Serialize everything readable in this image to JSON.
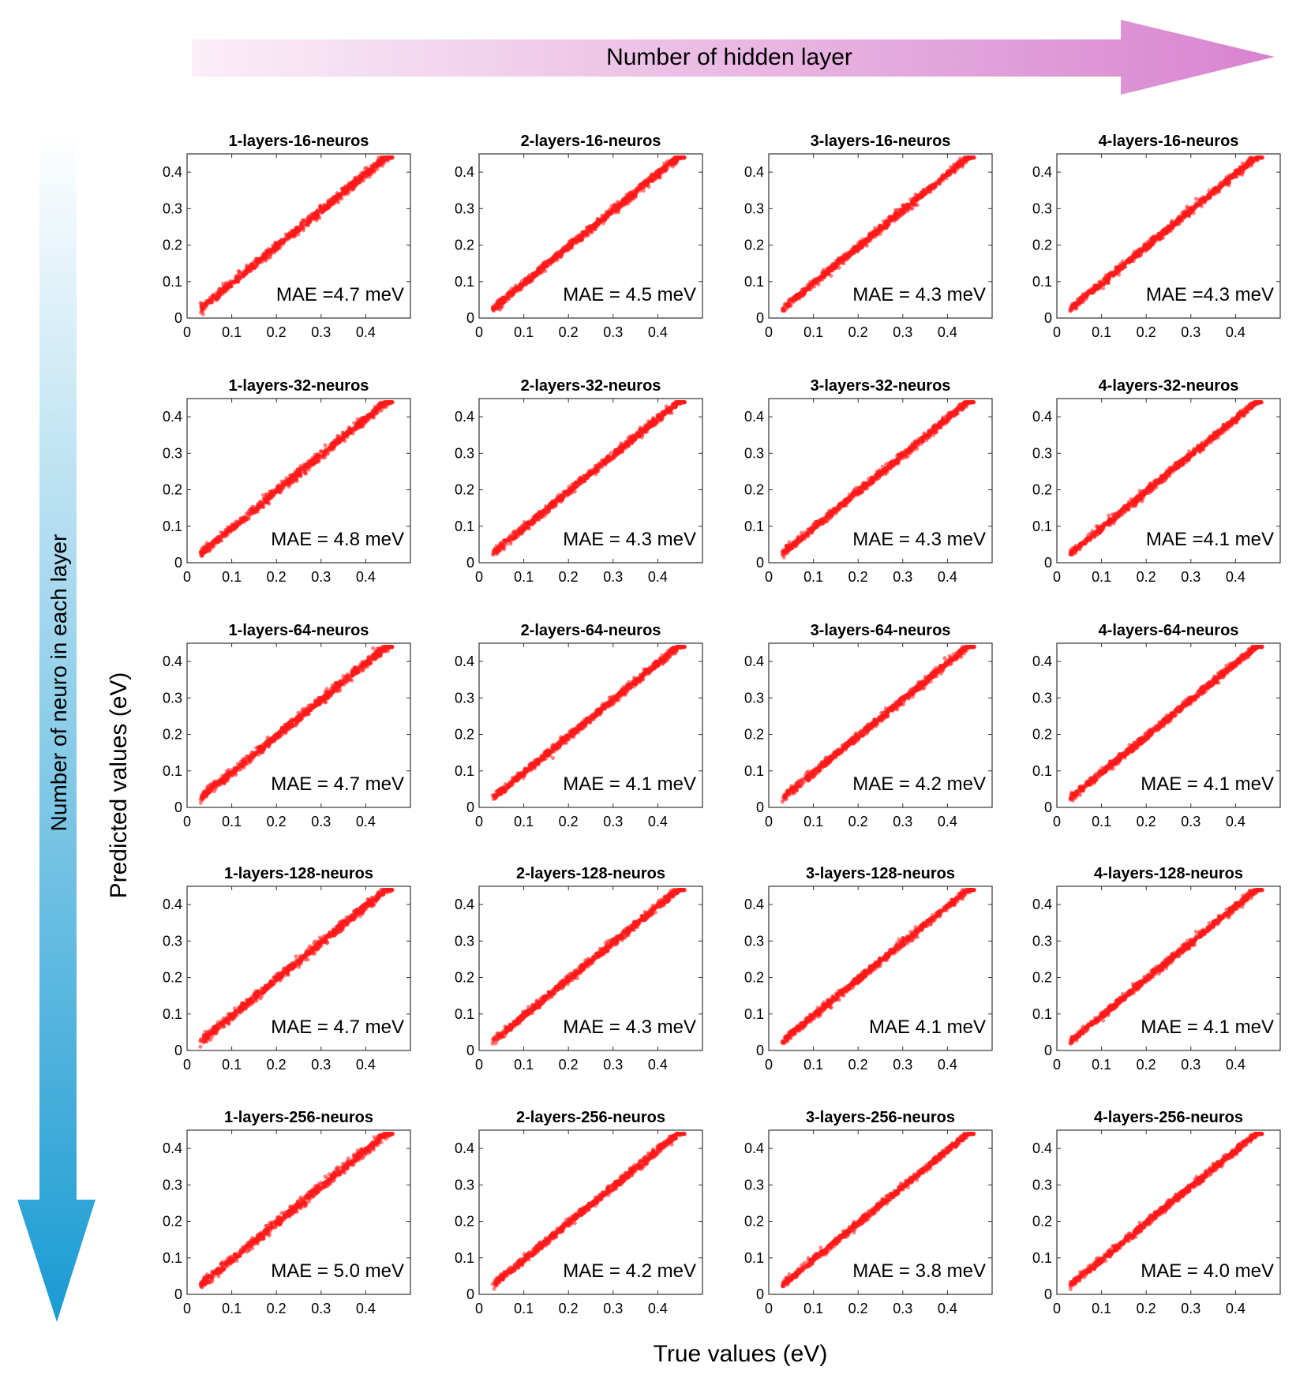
{
  "header": {
    "top_arrow_label": "Number of hidden layer",
    "left_arrow_label": "Number of neuro in each layer"
  },
  "axes": {
    "xlabel": "True values (eV)",
    "ylabel": "Predicted values (eV)"
  },
  "colors": {
    "points": "#ff1a1a",
    "top_arrow_start": "#fbeef7",
    "top_arrow_end": "#d884cf",
    "left_arrow_start": "#ffffff",
    "left_arrow_end": "#1a9bd3"
  },
  "chart_data": {
    "type": "scatter",
    "title": "",
    "xlabel": "True values (eV)",
    "ylabel": "Predicted values (eV)",
    "xlim": [
      0,
      0.5
    ],
    "ylim": [
      0,
      0.45
    ],
    "xticks": [
      "0",
      "0.1",
      "0.2",
      "0.3",
      "0.4"
    ],
    "yticks": [
      "0",
      "0.1",
      "0.2",
      "0.3",
      "0.4"
    ],
    "x_range_of_points": [
      0.03,
      0.46
    ],
    "layers": [
      1,
      2,
      3,
      4
    ],
    "neurons": [
      16,
      32,
      64,
      128,
      256
    ],
    "panels": [
      {
        "title": "1-layers-16-neuros",
        "mae_label": "MAE =4.7 meV",
        "mae_meV": 4.7
      },
      {
        "title": "2-layers-16-neuros",
        "mae_label": "MAE = 4.5 meV",
        "mae_meV": 4.5
      },
      {
        "title": "3-layers-16-neuros",
        "mae_label": "MAE = 4.3 meV",
        "mae_meV": 4.3
      },
      {
        "title": "4-layers-16-neuros",
        "mae_label": "MAE =4.3 meV",
        "mae_meV": 4.3
      },
      {
        "title": "1-layers-32-neuros",
        "mae_label": "MAE = 4.8 meV",
        "mae_meV": 4.8
      },
      {
        "title": "2-layers-32-neuros",
        "mae_label": "MAE = 4.3 meV",
        "mae_meV": 4.3
      },
      {
        "title": "3-layers-32-neuros",
        "mae_label": "MAE = 4.3 meV",
        "mae_meV": 4.3
      },
      {
        "title": "4-layers-32-neuros",
        "mae_label": "MAE =4.1 meV",
        "mae_meV": 4.1
      },
      {
        "title": "1-layers-64-neuros",
        "mae_label": "MAE = 4.7 meV",
        "mae_meV": 4.7
      },
      {
        "title": "2-layers-64-neuros",
        "mae_label": "MAE = 4.1 meV",
        "mae_meV": 4.1
      },
      {
        "title": "3-layers-64-neuros",
        "mae_label": "MAE = 4.2 meV",
        "mae_meV": 4.2
      },
      {
        "title": "4-layers-64-neuros",
        "mae_label": "MAE = 4.1 meV",
        "mae_meV": 4.1
      },
      {
        "title": "1-layers-128-neuros",
        "mae_label": "MAE = 4.7 meV",
        "mae_meV": 4.7
      },
      {
        "title": "2-layers-128-neuros",
        "mae_label": "MAE = 4.3 meV",
        "mae_meV": 4.3
      },
      {
        "title": "3-layers-128-neuros",
        "mae_label": "MAE 4.1 meV",
        "mae_meV": 4.1
      },
      {
        "title": "4-layers-128-neuros",
        "mae_label": "MAE = 4.1 meV",
        "mae_meV": 4.1
      },
      {
        "title": "1-layers-256-neuros",
        "mae_label": "MAE = 5.0 meV",
        "mae_meV": 5.0
      },
      {
        "title": "2-layers-256-neuros",
        "mae_label": "MAE = 4.2 meV",
        "mae_meV": 4.2
      },
      {
        "title": "3-layers-256-neuros",
        "mae_label": "MAE = 3.8 meV",
        "mae_meV": 3.8
      },
      {
        "title": "4-layers-256-neuros",
        "mae_label": "MAE = 4.0 meV",
        "mae_meV": 4.0
      }
    ]
  }
}
